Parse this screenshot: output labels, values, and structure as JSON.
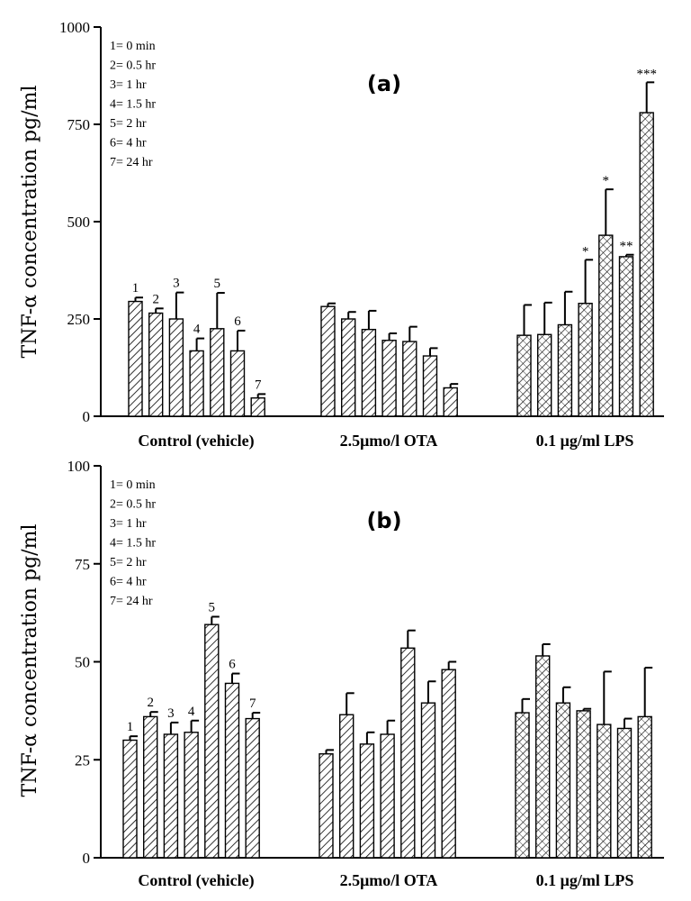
{
  "chart_data": [
    {
      "type": "bar",
      "panel_label": "(a)",
      "ylabel": "TNF-α concentration pg/ml",
      "ylim": [
        0,
        1000
      ],
      "yticks": [
        "0",
        "250",
        "500",
        "750",
        "1000"
      ],
      "ytick_values": [
        0,
        250,
        500,
        750,
        1000
      ],
      "legend": [
        "1= 0 min",
        "2= 0.5 hr",
        "3= 1 hr",
        "4= 1.5 hr",
        "5= 2 hr",
        "6= 4 hr",
        "7= 24 hr"
      ],
      "groups": [
        {
          "label": "Control (vehicle)",
          "values": [
            295,
            265,
            250,
            168,
            225,
            168,
            47
          ],
          "errors": [
            10,
            12,
            68,
            32,
            92,
            52,
            10
          ],
          "labels": [
            "1",
            "2",
            "3",
            "4",
            "5",
            "6",
            "7"
          ],
          "stars": [
            "",
            "",
            "",
            "",
            "",
            "",
            ""
          ]
        },
        {
          "label": "2.5μmo/l OTA",
          "values": [
            282,
            250,
            223,
            195,
            192,
            155,
            73
          ],
          "errors": [
            8,
            18,
            48,
            18,
            38,
            20,
            10
          ],
          "labels": [
            "",
            "",
            "",
            "",
            "",
            "",
            ""
          ],
          "stars": [
            "",
            "",
            "",
            "",
            "",
            "",
            ""
          ]
        },
        {
          "label": "0.1 μg/ml LPS",
          "values": [
            208,
            210,
            235,
            290,
            465,
            410,
            780
          ],
          "errors": [
            78,
            82,
            85,
            112,
            118,
            5,
            78
          ],
          "labels": [
            "",
            "",
            "",
            "",
            "",
            "",
            ""
          ],
          "stars": [
            "",
            "",
            "",
            "*",
            "*",
            "**",
            "***"
          ]
        }
      ]
    },
    {
      "type": "bar",
      "panel_label": "(b)",
      "ylabel": "TNF-α concentration pg/ml",
      "ylim": [
        0,
        100
      ],
      "yticks": [
        "0",
        "25",
        "50",
        "75",
        "100"
      ],
      "ytick_values": [
        0,
        25,
        50,
        75,
        100
      ],
      "legend": [
        "1= 0 min",
        "2= 0.5 hr",
        "3= 1 hr",
        "4= 1.5 hr",
        "5= 2 hr",
        "6= 4 hr",
        "7= 24 hr"
      ],
      "groups": [
        {
          "label": "Control (vehicle)",
          "values": [
            30,
            36,
            31.5,
            32,
            59.5,
            44.5,
            35.5
          ],
          "errors": [
            1,
            1.2,
            3,
            3,
            2,
            2.5,
            1.5
          ],
          "labels": [
            "1",
            "2",
            "3",
            "4",
            "5",
            "6",
            "7"
          ],
          "stars": [
            "",
            "",
            "",
            "",
            "",
            "",
            ""
          ]
        },
        {
          "label": "2.5μmo/l OTA",
          "values": [
            26.5,
            36.5,
            29,
            31.5,
            53.5,
            39.5,
            48
          ],
          "errors": [
            1,
            5.5,
            3,
            3.5,
            4.5,
            5.5,
            2
          ],
          "labels": [
            "",
            "",
            "",
            "",
            "",
            "",
            ""
          ],
          "stars": [
            "",
            "",
            "",
            "",
            "",
            "",
            ""
          ]
        },
        {
          "label": "0.1 μg/ml LPS",
          "values": [
            37,
            51.5,
            39.5,
            37.5,
            34,
            33,
            36
          ],
          "errors": [
            3.5,
            3,
            4,
            0.5,
            13.5,
            2.5,
            12.5
          ],
          "labels": [
            "",
            "",
            "",
            "",
            "",
            "",
            ""
          ],
          "stars": [
            "",
            "",
            "",
            "",
            "",
            "",
            ""
          ]
        }
      ]
    }
  ]
}
